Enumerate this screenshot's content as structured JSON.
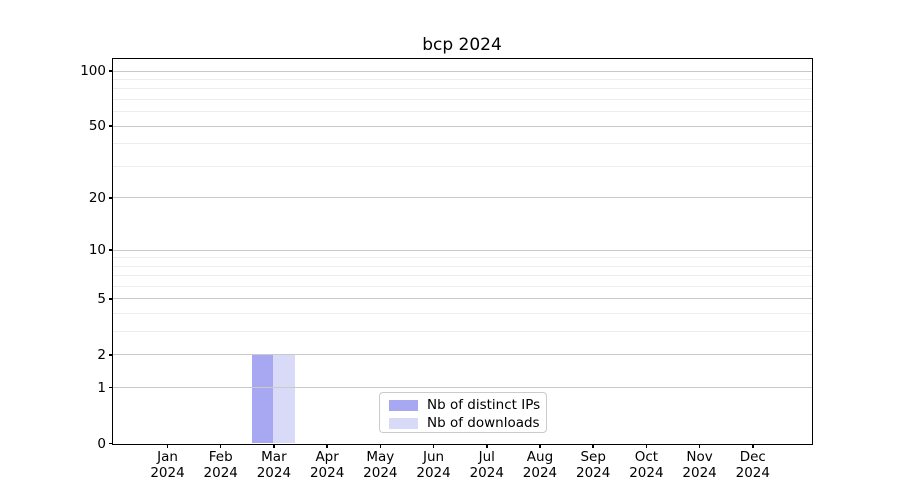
{
  "title": "bcp 2024",
  "chart_data": {
    "type": "bar",
    "title": "bcp 2024",
    "x_categories": [
      "Jan",
      "Feb",
      "Mar",
      "Apr",
      "May",
      "Jun",
      "Jul",
      "Aug",
      "Sep",
      "Oct",
      "Nov",
      "Dec"
    ],
    "x_year": "2024",
    "series": [
      {
        "name": "Nb of distinct IPs",
        "color": "#a8a8f2",
        "values": [
          0,
          0,
          2,
          0,
          0,
          0,
          0,
          0,
          0,
          0,
          0,
          0
        ]
      },
      {
        "name": "Nb of downloads",
        "color": "#d9d9f8",
        "values": [
          0,
          0,
          2,
          0,
          0,
          0,
          0,
          0,
          0,
          0,
          0,
          0
        ]
      }
    ],
    "y_scale": "log1p",
    "y_major_ticks": [
      0,
      1,
      2,
      5,
      10,
      20,
      50,
      100
    ],
    "y_minor_gridlines": [
      3,
      4,
      6,
      7,
      8,
      9,
      30,
      40,
      60,
      70,
      80,
      90
    ],
    "ylim": [
      0,
      116
    ],
    "grid": true,
    "legend_position": "lower center",
    "colors": {
      "major_grid": "#c9c9c9",
      "minor_grid": "#ededed",
      "spine": "#000000",
      "text": "#000000",
      "background": "#ffffff"
    }
  }
}
